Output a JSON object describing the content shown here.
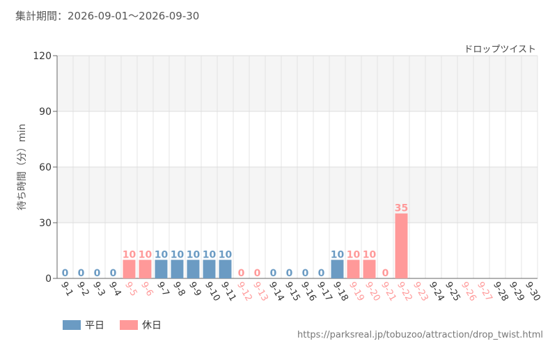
{
  "header": {
    "period_label": "集計期間：2026-09-01～2026-09-30",
    "attraction_name": "ドロップツイスト"
  },
  "footer": {
    "url": "https://parksreal.jp/tobuzoo/attraction/drop_twist.html"
  },
  "chart_data": {
    "type": "bar",
    "ylabel": "待ち時間（分）min",
    "ylim": [
      0,
      120
    ],
    "yticks": [
      0,
      30,
      60,
      90,
      120
    ],
    "grid": true,
    "legend_position": "bottom-left",
    "colors": {
      "weekday": "#6b9bc3",
      "holiday": "#ff9999"
    },
    "series": [
      {
        "name": "平日",
        "key": "weekday"
      },
      {
        "name": "休日",
        "key": "holiday"
      }
    ],
    "categories": [
      "9-1",
      "9-2",
      "9-3",
      "9-4",
      "9-5",
      "9-6",
      "9-7",
      "9-8",
      "9-9",
      "9-10",
      "9-11",
      "9-12",
      "9-13",
      "9-14",
      "9-15",
      "9-16",
      "9-17",
      "9-18",
      "9-19",
      "9-20",
      "9-21",
      "9-22",
      "9-23",
      "9-24",
      "9-25",
      "9-26",
      "9-27",
      "9-28",
      "9-29",
      "9-30"
    ],
    "day_type": [
      "weekday",
      "weekday",
      "weekday",
      "weekday",
      "holiday",
      "holiday",
      "weekday",
      "weekday",
      "weekday",
      "weekday",
      "weekday",
      "holiday",
      "holiday",
      "weekday",
      "weekday",
      "weekday",
      "weekday",
      "weekday",
      "holiday",
      "holiday",
      "holiday",
      "holiday",
      "holiday",
      "weekday",
      "weekday",
      "holiday",
      "holiday",
      "weekday",
      "weekday",
      "weekday"
    ],
    "values": [
      0,
      0,
      0,
      0,
      10,
      10,
      10,
      10,
      10,
      10,
      10,
      0,
      0,
      0,
      0,
      0,
      0,
      10,
      10,
      10,
      0,
      35,
      null,
      null,
      null,
      null,
      null,
      null,
      null,
      null
    ]
  }
}
